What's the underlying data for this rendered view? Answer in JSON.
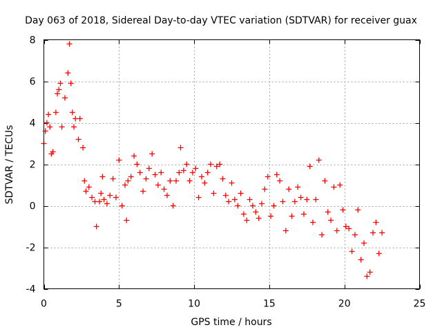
{
  "chart_data": {
    "type": "scatter",
    "title": "Day 063 of 2018, Sidereal Day-to-day VTEC variation (SDTVAR) for receiver guax",
    "xlabel": "GPS time / hours",
    "ylabel": "SDTVAR / TECUs",
    "xlim": [
      0,
      25
    ],
    "ylim": [
      -4,
      8
    ],
    "xticks": [
      0,
      5,
      10,
      15,
      20,
      25
    ],
    "yticks": [
      -4,
      -2,
      0,
      2,
      4,
      6,
      8
    ],
    "grid": true,
    "marker": "+",
    "series": [
      {
        "name": "SDTVAR",
        "color": "#ff0000",
        "x": [
          0.0,
          0.1,
          0.2,
          0.3,
          0.4,
          0.5,
          0.6,
          0.8,
          0.9,
          1.0,
          1.1,
          1.2,
          1.4,
          1.6,
          1.7,
          1.8,
          1.9,
          2.0,
          2.1,
          2.3,
          2.4,
          2.6,
          2.7,
          2.8,
          3.0,
          3.2,
          3.4,
          3.5,
          3.7,
          3.8,
          3.9,
          4.0,
          4.2,
          4.4,
          4.6,
          4.8,
          5.0,
          5.2,
          5.4,
          5.5,
          5.6,
          5.8,
          6.0,
          6.2,
          6.4,
          6.6,
          6.8,
          7.0,
          7.2,
          7.4,
          7.6,
          7.8,
          8.0,
          8.2,
          8.4,
          8.6,
          8.8,
          9.0,
          9.1,
          9.3,
          9.5,
          9.7,
          9.9,
          10.1,
          10.3,
          10.5,
          10.7,
          10.9,
          11.1,
          11.3,
          11.5,
          11.7,
          11.9,
          12.1,
          12.3,
          12.5,
          12.7,
          12.9,
          13.1,
          13.3,
          13.5,
          13.7,
          13.9,
          14.1,
          14.3,
          14.5,
          14.7,
          14.9,
          15.1,
          15.3,
          15.5,
          15.7,
          15.9,
          16.1,
          16.3,
          16.5,
          16.7,
          16.9,
          17.1,
          17.3,
          17.5,
          17.7,
          17.9,
          18.1,
          18.3,
          18.5,
          18.7,
          18.9,
          19.1,
          19.3,
          19.5,
          19.7,
          19.9,
          20.1,
          20.3,
          20.5,
          20.7,
          20.9,
          21.1,
          21.3,
          21.5,
          21.7,
          21.9,
          22.1,
          22.3,
          22.5
        ],
        "y": [
          3.0,
          3.6,
          4.0,
          4.4,
          3.8,
          2.5,
          2.6,
          4.5,
          5.4,
          5.6,
          5.9,
          3.8,
          5.2,
          6.4,
          7.8,
          5.9,
          4.5,
          3.8,
          4.2,
          3.2,
          4.2,
          2.8,
          1.2,
          0.7,
          0.9,
          0.4,
          0.2,
          -1.0,
          0.2,
          0.6,
          1.4,
          0.3,
          0.1,
          0.5,
          1.3,
          0.4,
          2.2,
          0.0,
          1.0,
          -0.7,
          1.2,
          1.4,
          2.4,
          2.0,
          1.6,
          0.7,
          1.3,
          1.8,
          2.5,
          1.5,
          1.0,
          1.6,
          0.8,
          0.5,
          1.2,
          0.0,
          1.2,
          1.6,
          2.8,
          1.7,
          2.0,
          1.2,
          1.6,
          1.8,
          0.4,
          1.4,
          1.1,
          1.6,
          2.0,
          0.6,
          1.9,
          2.0,
          1.3,
          0.5,
          0.2,
          1.1,
          0.3,
          0.0,
          0.6,
          -0.4,
          -0.7,
          0.3,
          0.0,
          -0.3,
          -0.6,
          0.1,
          0.8,
          1.4,
          -0.5,
          0.0,
          1.5,
          1.2,
          0.2,
          -1.2,
          0.8,
          -0.5,
          0.2,
          0.9,
          0.4,
          -0.4,
          0.3,
          1.9,
          -0.8,
          0.3,
          2.2,
          -1.4,
          1.2,
          -0.3,
          -0.7,
          0.9,
          -1.2,
          1.0,
          -0.2,
          -1.0,
          -1.1,
          -2.2,
          -1.4,
          -0.2,
          -2.6,
          -1.8,
          -3.4,
          -3.2,
          -1.3,
          -0.8,
          -2.3,
          -1.3
        ]
      }
    ]
  }
}
